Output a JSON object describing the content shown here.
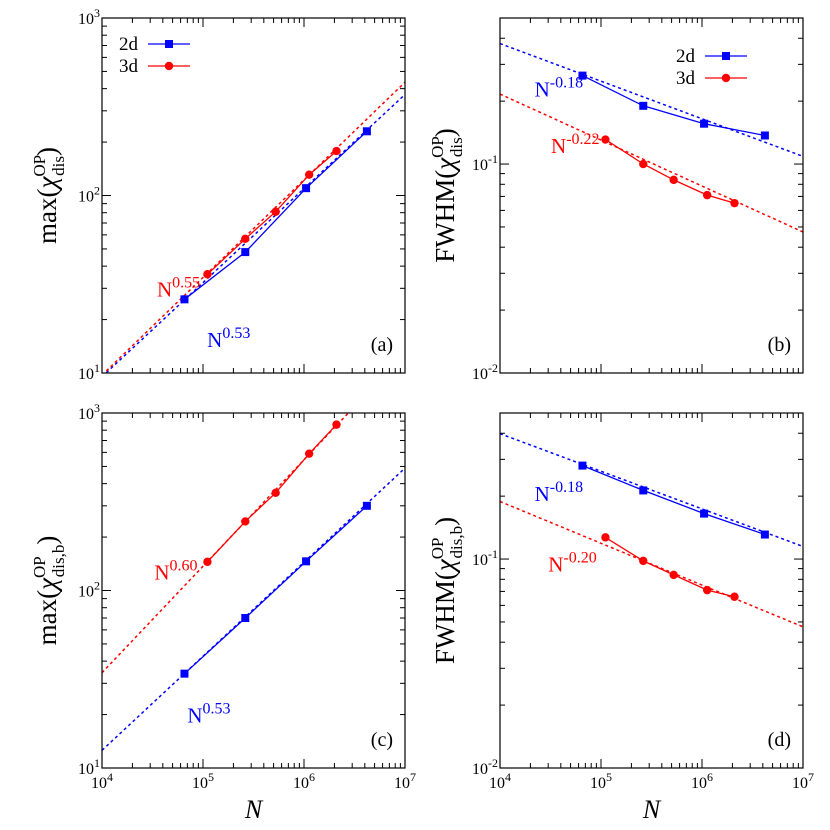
{
  "chart_data": [
    {
      "panel": "(a)",
      "type": "line",
      "xscale": "log",
      "yscale": "log",
      "xlim": [
        10000,
        10000000
      ],
      "ylim": [
        10,
        1000
      ],
      "xticks": [
        "10^4",
        "10^5",
        "10^6",
        "10^7"
      ],
      "yticks": [
        "10^1",
        "10^2",
        "10^3"
      ],
      "yticks_sup": [
        "1",
        "2",
        "3"
      ],
      "xlabel": "",
      "ylabel": "max(χ_dis^OP)",
      "ylabel_parts": {
        "pre": "max(",
        "chi": "χ",
        "sup": "OP",
        "sub": "dis",
        "post": ")"
      },
      "legend": {
        "position": "top-left",
        "entries": [
          "2d",
          "3d"
        ]
      },
      "series": [
        {
          "name": "2d",
          "color": "#0000ff",
          "marker": "square",
          "x": [
            65536,
            262144,
            1048576,
            4194304
          ],
          "y": [
            26,
            48,
            110,
            230
          ]
        },
        {
          "name": "3d",
          "color": "#ff0000",
          "marker": "circle",
          "x": [
            110592,
            262144,
            524288,
            1124864,
            2097152
          ],
          "y": [
            36,
            57,
            81,
            131,
            178
          ]
        }
      ],
      "fits": [
        {
          "color": "#0000ff",
          "amp": 0.0723,
          "exp": 0.53,
          "label_base": "N",
          "label_exp": "0.53",
          "label_at": [
            110000,
            14
          ]
        },
        {
          "color": "#ff0000",
          "amp": 0.0614,
          "exp": 0.55,
          "label_base": "N",
          "label_exp": "0.55",
          "label_at": [
            35000,
            27
          ]
        }
      ]
    },
    {
      "panel": "(b)",
      "type": "line",
      "xscale": "log",
      "yscale": "log",
      "xlim": [
        10000,
        10000000
      ],
      "ylim": [
        0.01,
        0.5
      ],
      "xticks": [
        "10^4",
        "10^5",
        "10^6",
        "10^7"
      ],
      "yticks": [
        "10^-2",
        "10^-1"
      ],
      "yticks_sup": [
        "-2",
        "-1"
      ],
      "xlabel": "",
      "ylabel": "FWHM(χ_dis^OP)",
      "ylabel_parts": {
        "pre": "FWHM(",
        "chi": "χ",
        "sup": "OP",
        "sub": "dis",
        "post": ")"
      },
      "legend": {
        "position": "top-right",
        "entries": [
          "2d",
          "3d"
        ]
      },
      "series": [
        {
          "name": "2d",
          "color": "#0000ff",
          "marker": "square",
          "x": [
            65536,
            262144,
            1048576,
            4194304
          ],
          "y": [
            0.265,
            0.19,
            0.156,
            0.137
          ]
        },
        {
          "name": "3d",
          "color": "#ff0000",
          "marker": "circle",
          "x": [
            110592,
            262144,
            524288,
            1124864,
            2097152
          ],
          "y": [
            0.131,
            0.1,
            0.084,
            0.071,
            0.065
          ]
        }
      ],
      "fits": [
        {
          "color": "#0000ff",
          "amp": 1.98,
          "exp": -0.18,
          "label_base": "N",
          "label_exp": "-0.18",
          "label_at": [
            22000,
            0.21
          ]
        },
        {
          "color": "#ff0000",
          "amp": 1.64,
          "exp": -0.22,
          "label_base": "N",
          "label_exp": "-0.22",
          "label_at": [
            32000,
            0.113
          ]
        }
      ]
    },
    {
      "panel": "(c)",
      "type": "line",
      "xscale": "log",
      "yscale": "log",
      "xlim": [
        10000,
        10000000
      ],
      "ylim": [
        10,
        1000
      ],
      "xticks": [
        "10^4",
        "10^5",
        "10^6",
        "10^7"
      ],
      "yticks": [
        "10^1",
        "10^2",
        "10^3"
      ],
      "yticks_sup": [
        "1",
        "2",
        "3"
      ],
      "xlabel": "N",
      "ylabel": "max(χ_dis,b^OP)",
      "ylabel_parts": {
        "pre": "max(",
        "chi": "χ",
        "sup": "OP",
        "sub": "dis,b",
        "post": ")"
      },
      "legend": null,
      "series": [
        {
          "name": "2d",
          "color": "#0000ff",
          "marker": "square",
          "x": [
            65536,
            262144,
            1048576,
            4194304
          ],
          "y": [
            34,
            70,
            146,
            300
          ]
        },
        {
          "name": "3d",
          "color": "#ff0000",
          "marker": "circle",
          "x": [
            110592,
            262144,
            524288,
            1124864,
            2097152
          ],
          "y": [
            145,
            245,
            355,
            590,
            860
          ]
        }
      ],
      "fits": [
        {
          "color": "#0000ff",
          "amp": 0.0954,
          "exp": 0.53,
          "label_base": "N",
          "label_exp": "0.53",
          "label_at": [
            70000,
            18
          ]
        },
        {
          "color": "#ff0000",
          "amp": 0.137,
          "exp": 0.6,
          "label_base": "N",
          "label_exp": "0.60",
          "label_at": [
            33000,
            115
          ]
        }
      ]
    },
    {
      "panel": "(d)",
      "type": "line",
      "xscale": "log",
      "yscale": "log",
      "xlim": [
        10000,
        10000000
      ],
      "ylim": [
        0.01,
        0.5
      ],
      "xticks": [
        "10^4",
        "10^5",
        "10^6",
        "10^7"
      ],
      "yticks": [
        "10^-2",
        "10^-1"
      ],
      "yticks_sup": [
        "-2",
        "-1"
      ],
      "xlabel": "N",
      "ylabel": "FWHM(χ_dis,b^OP)",
      "ylabel_parts": {
        "pre": "FWHM(",
        "chi": "χ",
        "sup": "OP",
        "sub": "dis,b",
        "post": ")"
      },
      "legend": null,
      "series": [
        {
          "name": "2d",
          "color": "#0000ff",
          "marker": "square",
          "x": [
            65536,
            262144,
            1048576,
            4194304
          ],
          "y": [
            0.28,
            0.213,
            0.165,
            0.131
          ]
        },
        {
          "name": "3d",
          "color": "#ff0000",
          "marker": "circle",
          "x": [
            110592,
            262144,
            524288,
            1124864,
            2097152
          ],
          "y": [
            0.127,
            0.098,
            0.084,
            0.071,
            0.066
          ]
        }
      ],
      "fits": [
        {
          "color": "#0000ff",
          "amp": 2.09,
          "exp": -0.18,
          "label_base": "N",
          "label_exp": "-0.18",
          "label_at": [
            22000,
            0.19
          ]
        },
        {
          "color": "#ff0000",
          "amp": 1.19,
          "exp": -0.2,
          "label_base": "N",
          "label_exp": "-0.20",
          "label_at": [
            30000,
            0.087
          ]
        }
      ]
    }
  ]
}
